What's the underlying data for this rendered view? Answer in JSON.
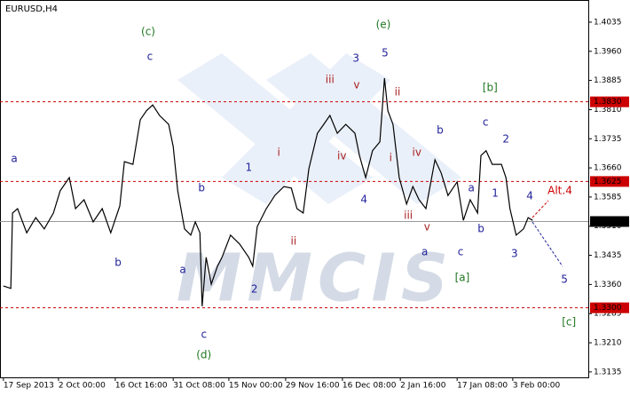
{
  "chart_data": {
    "type": "line",
    "title": "EURUSD,H4",
    "watermark": "MMCIS",
    "xlim": [
      -0.6,
      103
    ],
    "ylim": [
      1.3121,
      1.4092
    ],
    "xticks": [
      {
        "value": 0,
        "label": "17 Sep 2013"
      },
      {
        "value": 9.7,
        "label": "2 Oct 00:00"
      },
      {
        "value": 19.7,
        "label": "16 Oct 16:00"
      },
      {
        "value": 29.9,
        "label": "31 Oct 08:00"
      },
      {
        "value": 39.7,
        "label": "15 Nov 00:00"
      },
      {
        "value": 49.7,
        "label": "29 Nov 16:00"
      },
      {
        "value": 59.7,
        "label": "16 Dec 08:00"
      },
      {
        "value": 69.9,
        "label": "2 Jan 16:00"
      },
      {
        "value": 79.9,
        "label": "17 Jan 08:00"
      },
      {
        "value": 89.7,
        "label": "3 Feb 00:00"
      }
    ],
    "yticks": [
      1.3135,
      {
        "value": 1.321,
        "label": "1.3210"
      },
      1.3285,
      {
        "value": 1.336,
        "label": "1.3360"
      },
      1.3435,
      {
        "value": 1.351,
        "label": "1.3510"
      },
      1.3585,
      {
        "value": 1.366,
        "label": "1.3660"
      },
      1.3735,
      {
        "value": 1.381,
        "label": "1.3810"
      },
      1.3885,
      {
        "value": 1.396,
        "label": "1.3960"
      },
      1.4035
    ],
    "series": [
      {
        "name": "EURUSD",
        "color": "#000000",
        "x": [
          0.0,
          1.3,
          1.6,
          2.5,
          4.1,
          5.7,
          7.2,
          8.8,
          10.0,
          11.6,
          12.7,
          14.2,
          15.8,
          17.4,
          18.9,
          20.5,
          21.3,
          22.8,
          24.1,
          25.2,
          26.3,
          27.5,
          29.1,
          29.9,
          30.7,
          31.9,
          33.0,
          33.8,
          34.6,
          35.0,
          35.7,
          36.6,
          37.7,
          38.5,
          40.0,
          41.6,
          43.2,
          43.9,
          44.7,
          46.3,
          47.8,
          49.4,
          50.7,
          51.7,
          52.8,
          53.8,
          55.3,
          56.4,
          57.5,
          58.8,
          60.3,
          61.9,
          62.7,
          63.8,
          65.0,
          66.3,
          67.1,
          67.7,
          68.6,
          69.7,
          71.0,
          72.1,
          73.2,
          74.4,
          76.0,
          77.1,
          78.3,
          79.9,
          81.0,
          82.2,
          83.5,
          84.1,
          85.0,
          86.1,
          87.7,
          88.5,
          89.2,
          90.3,
          91.6,
          92.4,
          93.2
        ],
        "values": [
          1.3356,
          1.335,
          1.3544,
          1.3555,
          1.3493,
          1.3532,
          1.3503,
          1.3544,
          1.3601,
          1.3635,
          1.3555,
          1.3578,
          1.3521,
          1.3555,
          1.3493,
          1.3562,
          1.3676,
          1.3669,
          1.3784,
          1.3807,
          1.3822,
          1.3795,
          1.3772,
          1.3715,
          1.3601,
          1.3503,
          1.3487,
          1.3521,
          1.3493,
          1.3304,
          1.343,
          1.3361,
          1.3407,
          1.343,
          1.3487,
          1.3464,
          1.343,
          1.3407,
          1.3509,
          1.3555,
          1.3589,
          1.3612,
          1.3608,
          1.3555,
          1.3544,
          1.3658,
          1.3749,
          1.3772,
          1.3795,
          1.3749,
          1.3772,
          1.3749,
          1.3692,
          1.3635,
          1.3704,
          1.3727,
          1.3891,
          1.3807,
          1.3772,
          1.3635,
          1.3567,
          1.3612,
          1.3578,
          1.3555,
          1.3681,
          1.3647,
          1.3589,
          1.3624,
          1.3525,
          1.3578,
          1.3544,
          1.3692,
          1.3704,
          1.3669,
          1.3669,
          1.3635,
          1.3555,
          1.3487,
          1.3503,
          1.3532,
          1.3525
        ]
      }
    ],
    "levels": [
      {
        "value": 1.383,
        "label": "1.3830",
        "color": "#cc0000",
        "style": "dashed"
      },
      {
        "value": 1.3625,
        "label": "1.3625",
        "color": "#cc0000",
        "style": "dashed"
      },
      {
        "value": 1.3522,
        "label": "1.3522",
        "color": "#999999",
        "style": "solid"
      },
      {
        "value": 1.33,
        "label": "1.3300",
        "color": "#cc0000",
        "style": "dashed"
      }
    ],
    "annotations": [
      {
        "text": "(c)",
        "x": 25.5,
        "y": 1.401,
        "color": "#227722"
      },
      {
        "text": "c",
        "x": 25.8,
        "y": 1.3946,
        "color": "#22229a"
      },
      {
        "text": "a",
        "x": 1.9,
        "y": 1.3683,
        "color": "#22229a"
      },
      {
        "text": "b",
        "x": 20.2,
        "y": 1.3416,
        "color": "#22229a"
      },
      {
        "text": "b",
        "x": 34.9,
        "y": 1.3608,
        "color": "#22229a"
      },
      {
        "text": "a",
        "x": 31.6,
        "y": 1.3397,
        "color": "#22229a"
      },
      {
        "text": "c",
        "x": 35.3,
        "y": 1.3231,
        "color": "#22229a"
      },
      {
        "text": "(d)",
        "x": 35.3,
        "y": 1.3178,
        "color": "#227722"
      },
      {
        "text": "1",
        "x": 43.2,
        "y": 1.366,
        "color": "#22229a"
      },
      {
        "text": "2",
        "x": 44.2,
        "y": 1.3347,
        "color": "#22229a"
      },
      {
        "text": "i",
        "x": 48.5,
        "y": 1.3699,
        "color": "#aa2222"
      },
      {
        "text": "ii",
        "x": 51.1,
        "y": 1.3471,
        "color": "#aa2222"
      },
      {
        "text": "iii",
        "x": 57.5,
        "y": 1.3886,
        "color": "#aa2222"
      },
      {
        "text": "iv",
        "x": 59.6,
        "y": 1.369,
        "color": "#aa2222"
      },
      {
        "text": "3",
        "x": 62.1,
        "y": 1.3941,
        "color": "#22229a"
      },
      {
        "text": "v",
        "x": 62.2,
        "y": 1.3873,
        "color": "#aa2222"
      },
      {
        "text": "4",
        "x": 63.5,
        "y": 1.3578,
        "color": "#22229a"
      },
      {
        "text": "(e)",
        "x": 66.9,
        "y": 1.4028,
        "color": "#227722"
      },
      {
        "text": "5",
        "x": 67.2,
        "y": 1.3955,
        "color": "#22229a"
      },
      {
        "text": "ii",
        "x": 69.4,
        "y": 1.3854,
        "color": "#aa2222"
      },
      {
        "text": "i",
        "x": 68.2,
        "y": 1.3685,
        "color": "#aa2222"
      },
      {
        "text": "iv",
        "x": 72.8,
        "y": 1.3699,
        "color": "#aa2222"
      },
      {
        "text": "iii",
        "x": 71.3,
        "y": 1.3537,
        "color": "#aa2222"
      },
      {
        "text": "v",
        "x": 74.6,
        "y": 1.3507,
        "color": "#aa2222"
      },
      {
        "text": "a",
        "x": 74.2,
        "y": 1.3443,
        "color": "#22229a"
      },
      {
        "text": "b",
        "x": 76.9,
        "y": 1.3756,
        "color": "#22229a"
      },
      {
        "text": "c",
        "x": 80.5,
        "y": 1.3443,
        "color": "#22229a"
      },
      {
        "text": "[a]",
        "x": 80.8,
        "y": 1.3377,
        "color": "#227722"
      },
      {
        "text": "[b]",
        "x": 85.7,
        "y": 1.3866,
        "color": "#227722"
      },
      {
        "text": "a",
        "x": 82.4,
        "y": 1.3608,
        "color": "#22229a"
      },
      {
        "text": "b",
        "x": 84.1,
        "y": 1.3503,
        "color": "#22229a"
      },
      {
        "text": "1",
        "x": 86.6,
        "y": 1.3594,
        "color": "#22229a"
      },
      {
        "text": "c",
        "x": 84.9,
        "y": 1.3777,
        "color": "#22229a"
      },
      {
        "text": "2",
        "x": 88.5,
        "y": 1.3733,
        "color": "#22229a"
      },
      {
        "text": "3",
        "x": 90.0,
        "y": 1.3439,
        "color": "#22229a"
      },
      {
        "text": "4",
        "x": 92.7,
        "y": 1.3587,
        "color": "#22229a"
      },
      {
        "text": "5",
        "x": 98.8,
        "y": 1.3372,
        "color": "#22229a"
      },
      {
        "text": "[c]",
        "x": 99.6,
        "y": 1.3263,
        "color": "#227722"
      },
      {
        "text": "Alt.4",
        "x": 98.0,
        "y": 1.3601,
        "color": "#cc0000"
      }
    ]
  }
}
